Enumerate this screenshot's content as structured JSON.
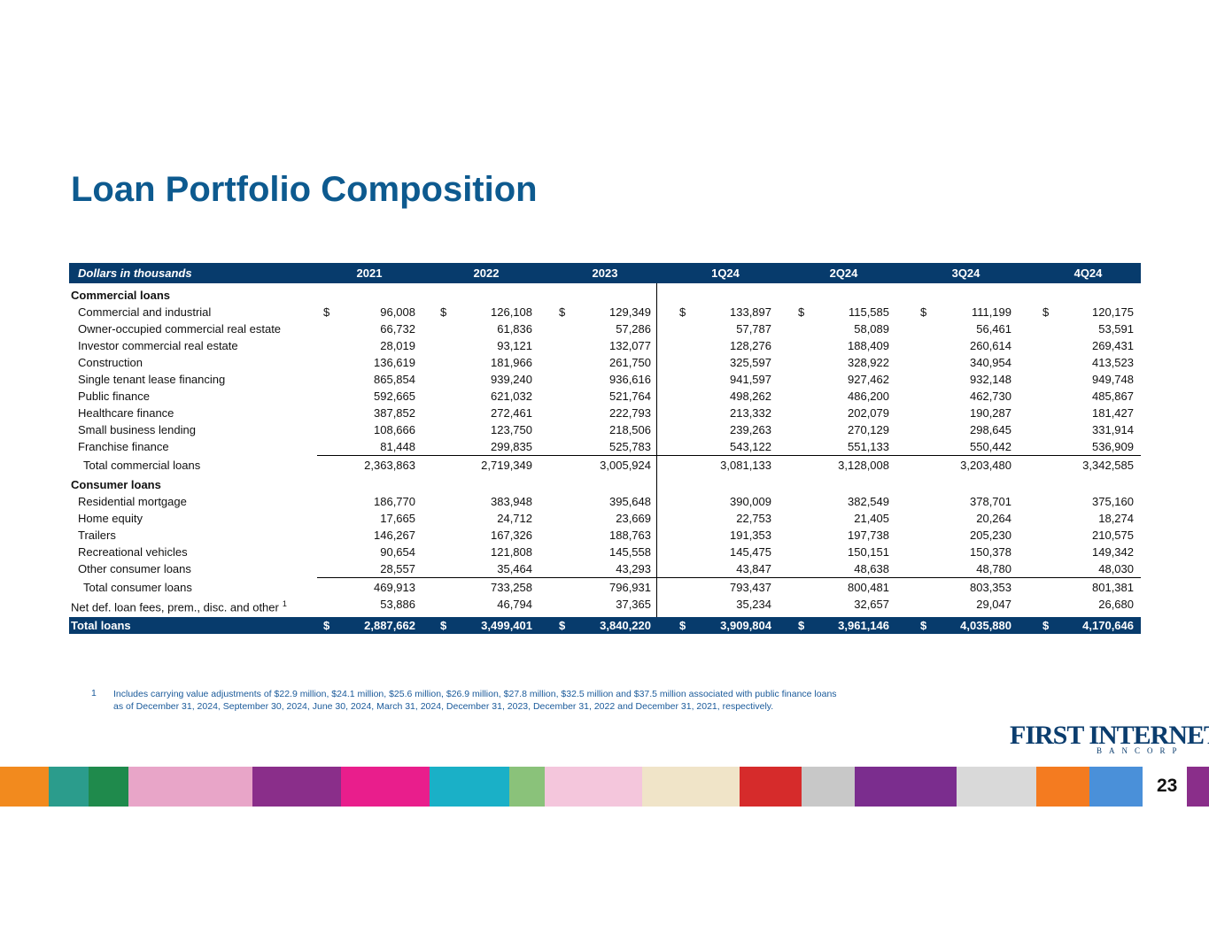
{
  "title": "Loan Portfolio Composition",
  "table": {
    "header": [
      "Dollars in thousands",
      "2021",
      "2022",
      "2023",
      "1Q24",
      "2Q24",
      "3Q24",
      "4Q24"
    ],
    "currency": "$",
    "sections": [
      {
        "title": "Commercial loans",
        "rows": [
          {
            "label": "Commercial and industrial",
            "values": [
              "96,008",
              "126,108",
              "129,349",
              "133,897",
              "115,585",
              "111,199",
              "120,175"
            ]
          },
          {
            "label": "Owner-occupied commercial real estate",
            "values": [
              "66,732",
              "61,836",
              "57,286",
              "57,787",
              "58,089",
              "56,461",
              "53,591"
            ]
          },
          {
            "label": "Investor commercial real estate",
            "values": [
              "28,019",
              "93,121",
              "132,077",
              "128,276",
              "188,409",
              "260,614",
              "269,431"
            ]
          },
          {
            "label": "Construction",
            "values": [
              "136,619",
              "181,966",
              "261,750",
              "325,597",
              "328,922",
              "340,954",
              "413,523"
            ]
          },
          {
            "label": "Single tenant lease financing",
            "values": [
              "865,854",
              "939,240",
              "936,616",
              "941,597",
              "927,462",
              "932,148",
              "949,748"
            ]
          },
          {
            "label": "Public finance",
            "values": [
              "592,665",
              "621,032",
              "521,764",
              "498,262",
              "486,200",
              "462,730",
              "485,867"
            ]
          },
          {
            "label": "Healthcare finance",
            "values": [
              "387,852",
              "272,461",
              "222,793",
              "213,332",
              "202,079",
              "190,287",
              "181,427"
            ]
          },
          {
            "label": "Small business lending",
            "values": [
              "108,666",
              "123,750",
              "218,506",
              "239,263",
              "270,129",
              "298,645",
              "331,914"
            ]
          },
          {
            "label": "Franchise finance",
            "values": [
              "81,448",
              "299,835",
              "525,783",
              "543,122",
              "551,133",
              "550,442",
              "536,909"
            ]
          }
        ],
        "total": {
          "label": "Total commercial loans",
          "values": [
            "2,363,863",
            "2,719,349",
            "3,005,924",
            "3,081,133",
            "3,128,008",
            "3,203,480",
            "3,342,585"
          ]
        }
      },
      {
        "title": "Consumer loans",
        "rows": [
          {
            "label": "Residential mortgage",
            "values": [
              "186,770",
              "383,948",
              "395,648",
              "390,009",
              "382,549",
              "378,701",
              "375,160"
            ]
          },
          {
            "label": "Home equity",
            "values": [
              "17,665",
              "24,712",
              "23,669",
              "22,753",
              "21,405",
              "20,264",
              "18,274"
            ]
          },
          {
            "label": "Trailers",
            "values": [
              "146,267",
              "167,326",
              "188,763",
              "191,353",
              "197,738",
              "205,230",
              "210,575"
            ]
          },
          {
            "label": "Recreational vehicles",
            "values": [
              "90,654",
              "121,808",
              "145,558",
              "145,475",
              "150,151",
              "150,378",
              "149,342"
            ]
          },
          {
            "label": "Other consumer loans",
            "values": [
              "28,557",
              "35,464",
              "43,293",
              "43,847",
              "48,638",
              "48,780",
              "48,030"
            ]
          }
        ],
        "total": {
          "label": "Total consumer loans",
          "values": [
            "469,913",
            "733,258",
            "796,931",
            "793,437",
            "800,481",
            "803,353",
            "801,381"
          ]
        }
      }
    ],
    "net_fees": {
      "label": "Net def. loan fees, prem., disc. and other",
      "note": "1",
      "values": [
        "53,886",
        "46,794",
        "37,365",
        "35,234",
        "32,657",
        "29,047",
        "26,680"
      ]
    },
    "total": {
      "label": "Total loans",
      "values": [
        "2,887,662",
        "3,499,401",
        "3,840,220",
        "3,909,804",
        "3,961,146",
        "4,035,880",
        "4,170,646"
      ]
    }
  },
  "footnote": {
    "marker": "1",
    "text": "Includes carrying value adjustments of $22.9 million, $24.1 million, $25.6 million, $26.9 million, $27.8 million, $32.5 million and $37.5 million associated with public finance loans as of December 31, 2024, September 30, 2024, June 30, 2024, March 31, 2024, December 31, 2023, December 31, 2022 and December 31, 2021, respectively."
  },
  "logo": {
    "name": "FIRST INTERNET",
    "sub": "BANCORP"
  },
  "page_number": "23"
}
